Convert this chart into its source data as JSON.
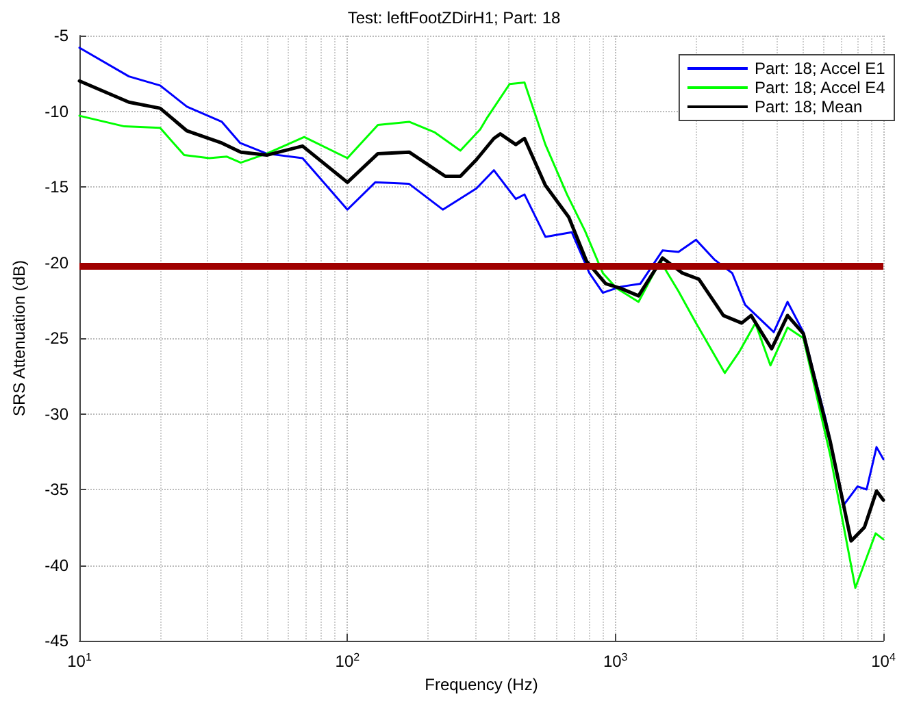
{
  "chart_data": {
    "type": "line",
    "title": "Test: leftFootZDirH1; Part: 18",
    "xlabel": "Frequency (Hz)",
    "ylabel": "SRS Attenuation (dB)",
    "log": "x",
    "grid": true,
    "legend": "top right",
    "marker": "none",
    "line_style": "solid",
    "xlim": [
      10,
      10000
    ],
    "xticks": [
      {
        "value": 10,
        "label": "10$^{1}$"
      },
      {
        "value": 100,
        "label": "10$^{2}$"
      },
      {
        "value": 1000,
        "label": "10$^{3}$"
      },
      {
        "value": 10000,
        "label": "10$^{4}$"
      }
    ],
    "ylim": [
      -45,
      -5
    ],
    "yticks": [
      -45,
      -40,
      -35,
      -30,
      -25,
      -20,
      -15,
      -10,
      -5
    ],
    "ref_lines": [
      {
        "axis": "y",
        "value": -20.2,
        "label": null,
        "color": "#a00000"
      }
    ],
    "series": [
      {
        "name": "Part: 18; Accel E1",
        "color": "#0000ff",
        "x": [
          10,
          15.3,
          20,
          25.2,
          34,
          39.8,
          50,
          68,
          100,
          127,
          170,
          227,
          303,
          352,
          425,
          458,
          548,
          688,
          800,
          898,
          1045,
          1240,
          1500,
          1720,
          2000,
          2340,
          2730,
          3050,
          3900,
          4390,
          5030,
          6100,
          7130,
          8010,
          8660,
          9430,
          10000
        ],
        "values": [
          -5.8,
          -7.7,
          -8.3,
          -9.7,
          -10.7,
          -12.1,
          -12.8,
          -13.1,
          -16.5,
          -14.7,
          -14.8,
          -16.5,
          -15.1,
          -13.9,
          -15.8,
          -15.5,
          -18.3,
          -18.0,
          -20.7,
          -22.0,
          -21.6,
          -21.4,
          -19.2,
          -19.3,
          -18.5,
          -19.8,
          -20.7,
          -22.8,
          -24.6,
          -22.6,
          -24.6,
          -30.4,
          -36.0,
          -34.8,
          -35.0,
          -32.2,
          -33.0
        ]
      },
      {
        "name": "Part: 18; Accel E4",
        "color": "#00ff00",
        "x": [
          10,
          14.7,
          20,
          24.6,
          30.5,
          35.5,
          40,
          50,
          69,
          100,
          130,
          170,
          212,
          264,
          313,
          333,
          403,
          458,
          548,
          660,
          770,
          898,
          1010,
          1220,
          1470,
          1720,
          2000,
          2560,
          2900,
          3330,
          3790,
          4390,
          5030,
          6330,
          7860,
          9360,
          10000
        ],
        "values": [
          -10.3,
          -11.0,
          -11.1,
          -12.9,
          -13.1,
          -13.0,
          -13.4,
          -12.8,
          -11.7,
          -13.1,
          -10.9,
          -10.7,
          -11.4,
          -12.6,
          -11.2,
          -10.4,
          -8.2,
          -8.1,
          -12.2,
          -15.5,
          -17.9,
          -20.7,
          -21.7,
          -22.6,
          -19.9,
          -21.9,
          -24.0,
          -27.3,
          -25.9,
          -24.0,
          -26.8,
          -24.3,
          -25.0,
          -32.7,
          -41.5,
          -37.9,
          -38.3
        ]
      },
      {
        "name": "Part: 18; Mean",
        "color": "#000000",
        "x": [
          10,
          15.3,
          20,
          25.2,
          34,
          40,
          50,
          68,
          100,
          130,
          170,
          232,
          264,
          303,
          352,
          372,
          425,
          458,
          548,
          670,
          780,
          920,
          1045,
          1220,
          1500,
          1780,
          2050,
          2530,
          2960,
          3210,
          3830,
          4390,
          5030,
          6330,
          7580,
          8500,
          9430,
          10000
        ],
        "values": [
          -8.0,
          -9.4,
          -9.8,
          -11.3,
          -12.1,
          -12.7,
          -12.9,
          -12.3,
          -14.7,
          -12.8,
          -12.7,
          -14.3,
          -14.3,
          -13.2,
          -11.8,
          -11.5,
          -12.2,
          -11.8,
          -14.9,
          -17.0,
          -19.9,
          -21.4,
          -21.7,
          -22.2,
          -19.7,
          -20.7,
          -21.1,
          -23.5,
          -24.0,
          -23.5,
          -25.7,
          -23.5,
          -24.7,
          -31.8,
          -38.4,
          -37.5,
          -35.1,
          -35.7
        ]
      }
    ]
  }
}
